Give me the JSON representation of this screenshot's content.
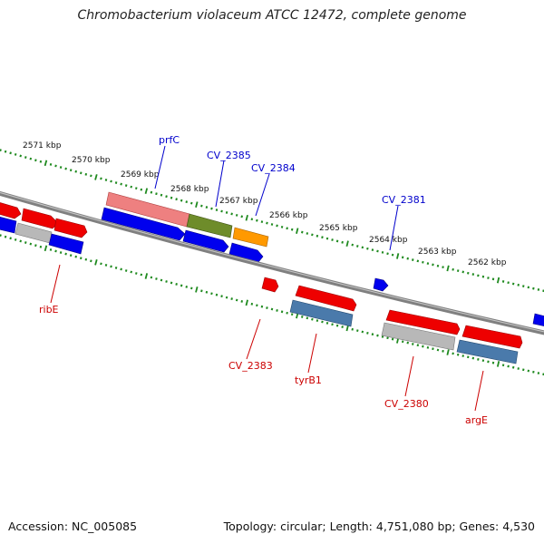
{
  "title": "Chromobacterium violaceum ATCC 12472, complete genome",
  "footer": {
    "accession": "Accession: NC_005085",
    "topology": "Topology: circular; Length: 4,751,080 bp; Genes: 4,530"
  },
  "colors": {
    "backbone": "#808080",
    "scale_tick": "#1f8a1f",
    "forward_label": "#0000cc",
    "reverse_label": "#cc0000",
    "red_gene": "#ee0000",
    "pink_gene": "#ee8080",
    "olive_gene": "#6e8c2a",
    "orange_gene": "#ff9900",
    "blue_gene": "#0000ee",
    "steel_gene": "#4a7aab",
    "gray_gene": "#b8b8b8"
  },
  "scale_labels": [
    "2571 kbp",
    "2570 kbp",
    "2569 kbp",
    "2568 kbp",
    "2567 kbp",
    "2566 kbp",
    "2565 kbp",
    "2564 kbp",
    "2563 kbp",
    "2562 kbp"
  ],
  "forward_labels": [
    "prfC",
    "CV_2385",
    "CV_2384",
    "CV_2381"
  ],
  "reverse_labels": [
    "ribE",
    "CV_2383",
    "tyrB1",
    "CV_2380",
    "argE"
  ]
}
